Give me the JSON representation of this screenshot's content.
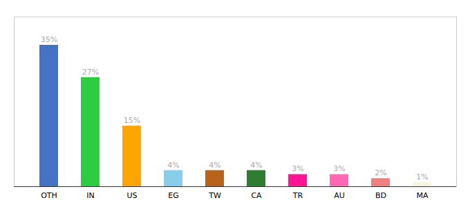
{
  "chart_data": {
    "type": "bar",
    "categories": [
      "OTH",
      "IN",
      "US",
      "EG",
      "TW",
      "CA",
      "TR",
      "AU",
      "BD",
      "MA"
    ],
    "values": [
      35,
      27,
      15,
      4,
      4,
      4,
      3,
      3,
      2,
      1
    ],
    "value_labels": [
      "35%",
      "27%",
      "15%",
      "4%",
      "4%",
      "4%",
      "3%",
      "3%",
      "2%",
      "1%"
    ],
    "colors": [
      "#4472C4",
      "#2ECC40",
      "#FFA500",
      "#87CEEB",
      "#B8621B",
      "#2E7D32",
      "#FF1493",
      "#FF69B4",
      "#F08080",
      "#F5F5DC"
    ],
    "ylim": [
      0,
      42
    ],
    "yticks": [],
    "grid": false,
    "data_labels": true,
    "tick_labels": "x"
  }
}
